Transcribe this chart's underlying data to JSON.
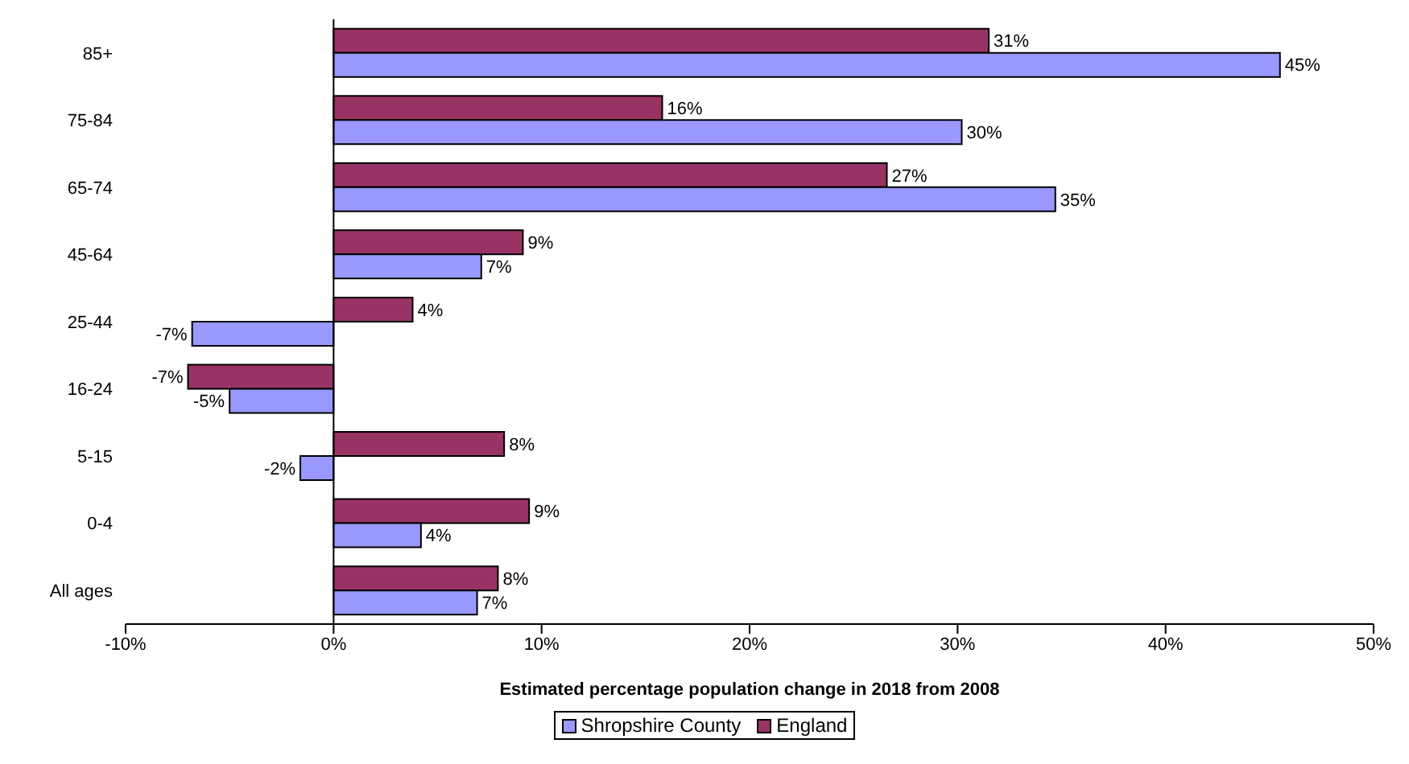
{
  "chart_data": {
    "type": "bar",
    "orientation": "horizontal",
    "xlabel": "Estimated percentage population change in 2018 from 2008",
    "categories": [
      "85+",
      "75-84",
      "65-74",
      "45-64",
      "25-44",
      "16-24",
      "5-15",
      "0-4",
      "All ages"
    ],
    "series": [
      {
        "name": "Shropshire County",
        "color": "#9999ff",
        "values": [
          45.5,
          30.2,
          34.7,
          7.1,
          -6.8,
          -5.0,
          -1.6,
          4.2,
          6.9
        ],
        "value_labels": [
          "45%",
          "30%",
          "35%",
          "7%",
          "-7%",
          "-5%",
          "-2%",
          "4%",
          "7%"
        ]
      },
      {
        "name": "England",
        "color": "#993366",
        "values": [
          31.5,
          15.8,
          26.6,
          9.1,
          3.8,
          -7.0,
          8.2,
          9.4,
          7.9
        ],
        "value_labels": [
          "31%",
          "16%",
          "27%",
          "9%",
          "4%",
          "-7%",
          "8%",
          "9%",
          "8%"
        ]
      }
    ],
    "xlim": [
      -10,
      50
    ],
    "xticks": [
      {
        "value": -10,
        "label": "-10%"
      },
      {
        "value": 0,
        "label": "0%"
      },
      {
        "value": 10,
        "label": "10%"
      },
      {
        "value": 20,
        "label": "20%"
      },
      {
        "value": 30,
        "label": "30%"
      },
      {
        "value": 40,
        "label": "40%"
      },
      {
        "value": 50,
        "label": "50%"
      }
    ],
    "ref_lines": [
      {
        "axis": "x",
        "value": 0,
        "color": "#000000"
      }
    ],
    "grid": false,
    "legend": "bottom"
  }
}
